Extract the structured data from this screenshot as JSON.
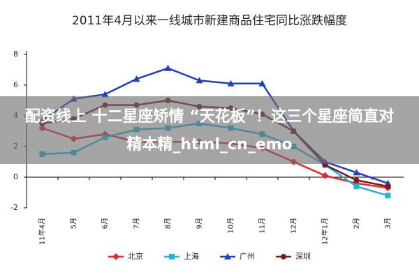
{
  "chart_data": {
    "type": "line",
    "title": "2011年4月以来一线城市新建商品住宅同比涨跌幅度",
    "categories": [
      "11年4月",
      "5月",
      "6月",
      "7月",
      "8月",
      "9月",
      "10月",
      "11月",
      "12月",
      "12年1月",
      "2月",
      "3月"
    ],
    "series": [
      {
        "name": "北京",
        "color": "#e8262b",
        "marker": "diamond",
        "values": [
          3.2,
          2.5,
          2.8,
          2.3,
          2.3,
          2.3,
          2.2,
          1.9,
          1.0,
          0.1,
          -0.4,
          -0.7
        ]
      },
      {
        "name": "上海",
        "color": "#1fb5e0",
        "marker": "square",
        "values": [
          1.5,
          1.6,
          2.6,
          3.1,
          3.2,
          3.5,
          3.2,
          2.8,
          2.0,
          0.8,
          -0.6,
          -1.2
        ]
      },
      {
        "name": "广州",
        "color": "#1f3fbf",
        "marker": "triangle",
        "values": [
          3.7,
          5.1,
          5.4,
          6.4,
          7.1,
          6.3,
          6.1,
          6.1,
          3.0,
          1.0,
          0.3,
          -0.4
        ]
      },
      {
        "name": "深圳",
        "color": "#7a1a1a",
        "marker": "circle",
        "values": [
          3.5,
          3.8,
          4.7,
          4.7,
          5.0,
          4.6,
          4.5,
          4.1,
          3.0,
          0.8,
          -0.2,
          -0.6
        ]
      }
    ],
    "ylim": [
      -2,
      8
    ],
    "yticks": [
      -2,
      0,
      2,
      4,
      6,
      8
    ],
    "legend": "bottom"
  },
  "overlay": {
    "line1": "配资线上 十二星座矫情 “天花板”！这三个星座简直对",
    "line2": "精本精_html_cn_emo"
  }
}
